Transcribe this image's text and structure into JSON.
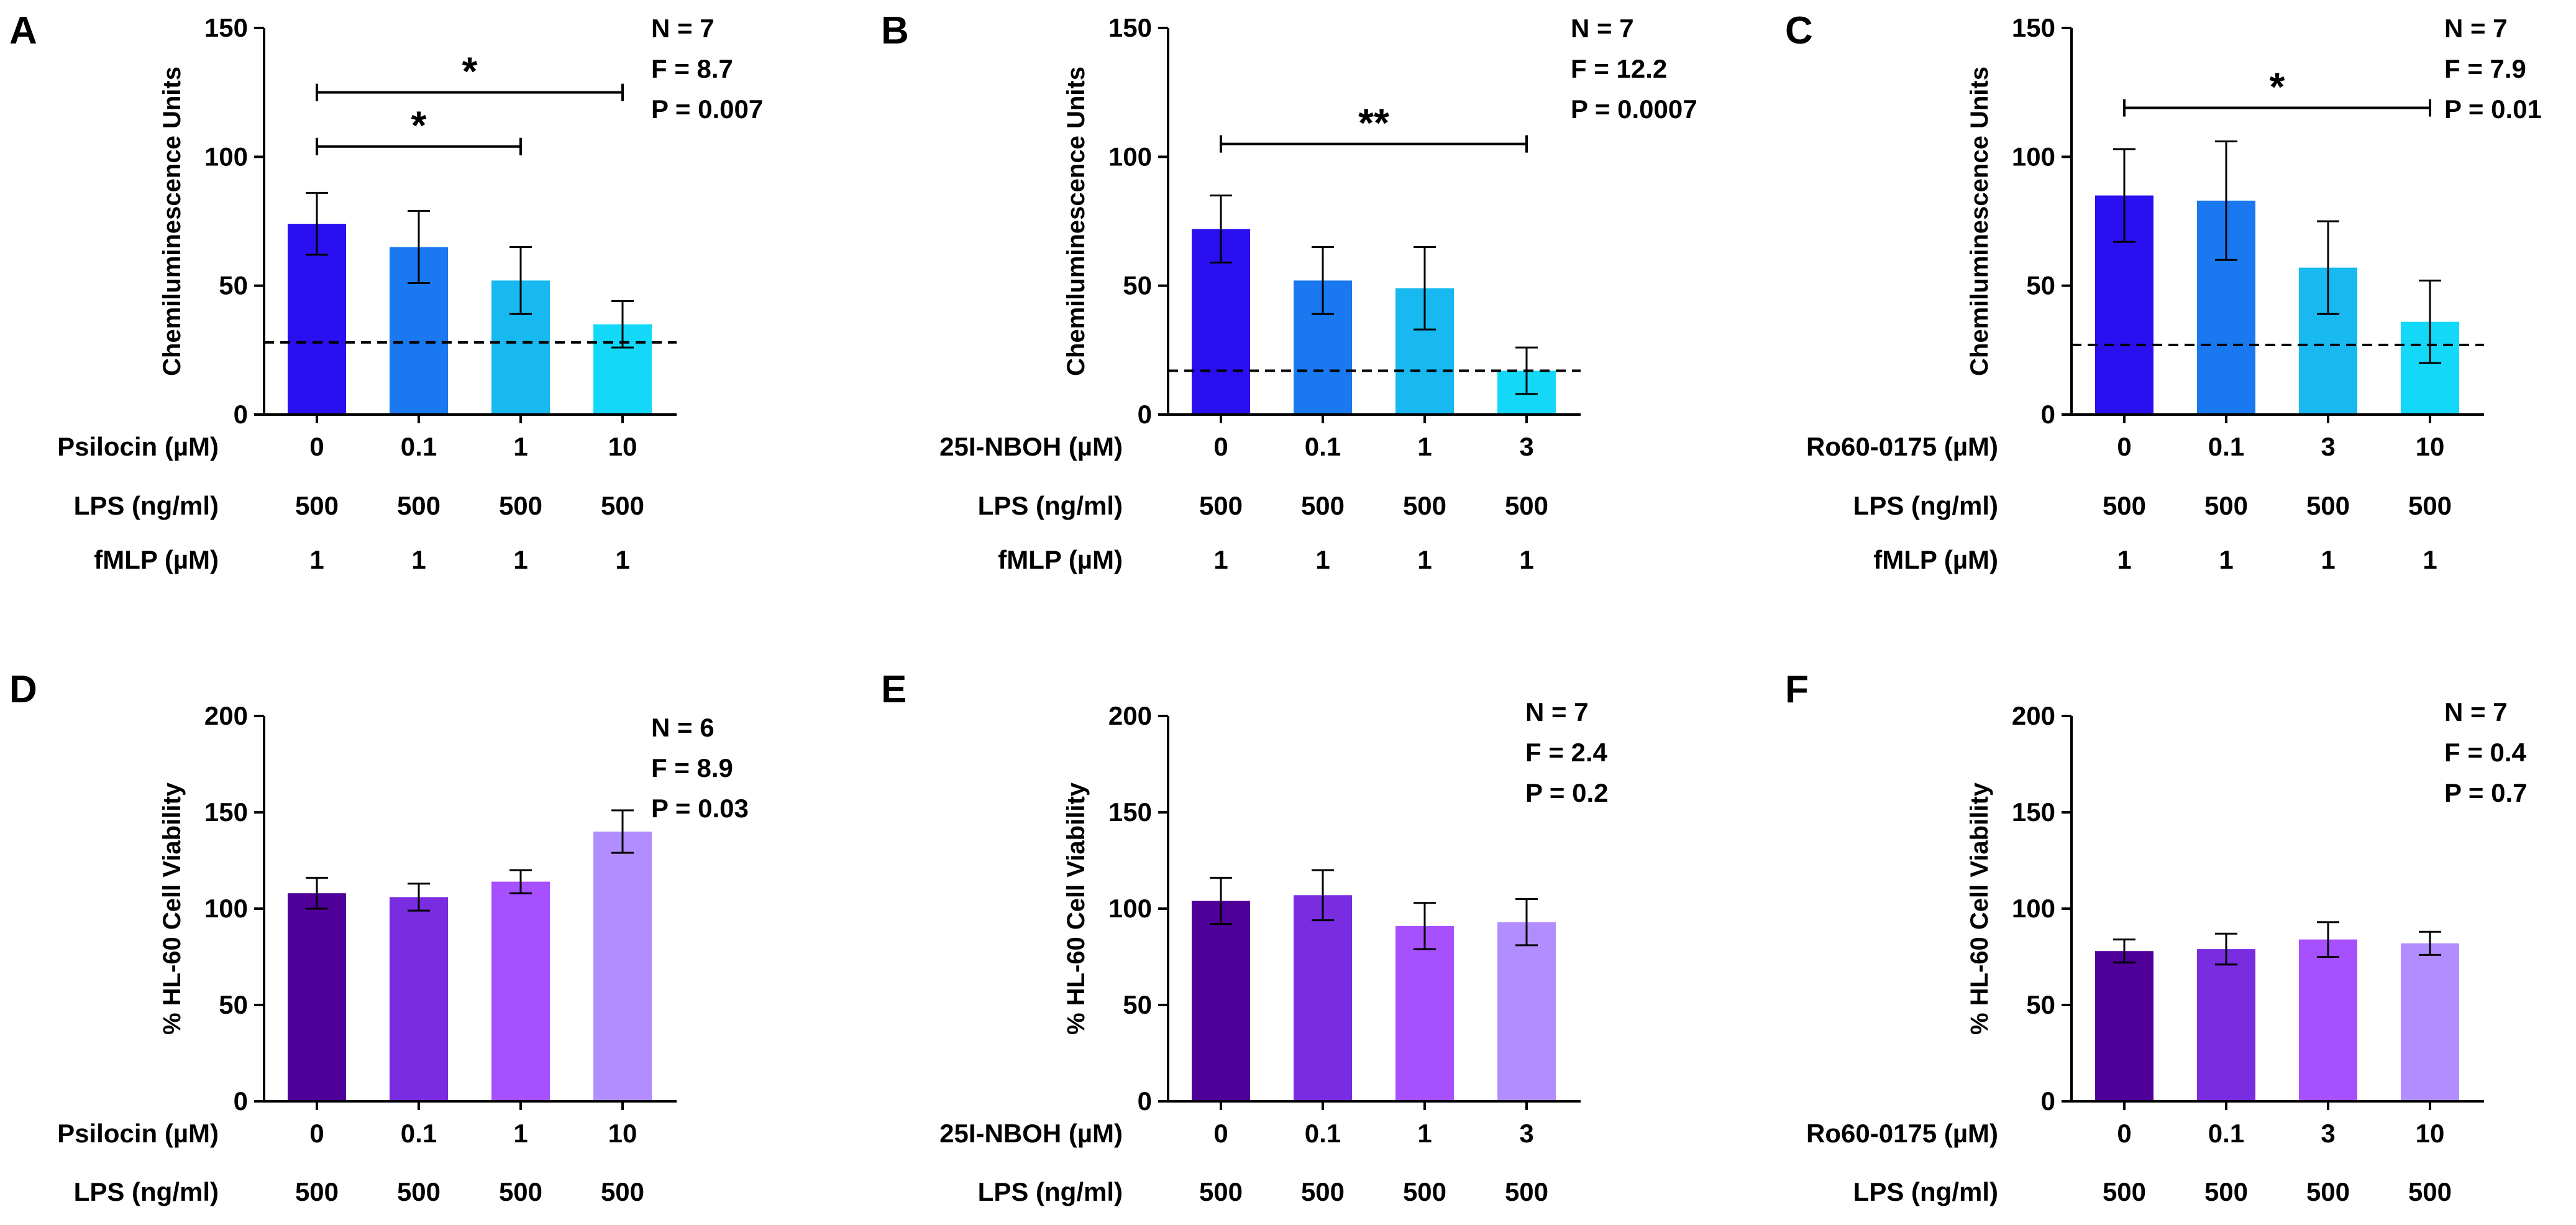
{
  "figure": {
    "theme": "scientific bar charts with error bars"
  },
  "chart_data": [
    {
      "panel": "A",
      "type": "bar",
      "ylabel": "Chemiluminescence Units",
      "ylim": [
        0,
        150
      ],
      "yticks": [
        0,
        50,
        100,
        150
      ],
      "rows": [
        {
          "label": "Psilocin (µM)",
          "values": [
            "0",
            "0.1",
            "1",
            "10"
          ]
        },
        {
          "label": "LPS (ng/ml)",
          "values": [
            "500",
            "500",
            "500",
            "500"
          ]
        },
        {
          "label": "fMLP (µM)",
          "values": [
            "1",
            "1",
            "1",
            "1"
          ]
        }
      ],
      "values": [
        74,
        65,
        52,
        35
      ],
      "errors": [
        12,
        14,
        13,
        9
      ],
      "colors": [
        "#2a10f0",
        "#1a78f0",
        "#18b8f0",
        "#14d8f8"
      ],
      "baseline": 28,
      "stats": [
        "N = 7",
        "F = 8.7",
        "P = 0.007"
      ],
      "significance": [
        {
          "from": 0,
          "to": 3,
          "y": 125,
          "label": "*"
        },
        {
          "from": 0,
          "to": 2,
          "y": 104,
          "label": "*"
        }
      ]
    },
    {
      "panel": "B",
      "type": "bar",
      "ylabel": "Chemiluminescence Units",
      "ylim": [
        0,
        150
      ],
      "yticks": [
        0,
        50,
        100,
        150
      ],
      "rows": [
        {
          "label": "25I-NBOH (µM)",
          "values": [
            "0",
            "0.1",
            "1",
            "3"
          ]
        },
        {
          "label": "LPS (ng/ml)",
          "values": [
            "500",
            "500",
            "500",
            "500"
          ]
        },
        {
          "label": "fMLP (µM)",
          "values": [
            "1",
            "1",
            "1",
            "1"
          ]
        }
      ],
      "values": [
        72,
        52,
        49,
        17
      ],
      "errors": [
        13,
        13,
        16,
        9
      ],
      "colors": [
        "#2a10f0",
        "#1a78f0",
        "#18b8f0",
        "#14d8f8"
      ],
      "baseline": 17,
      "stats": [
        "N = 7",
        "F = 12.2",
        "P = 0.0007"
      ],
      "significance": [
        {
          "from": 0,
          "to": 3,
          "y": 105,
          "label": "**"
        }
      ]
    },
    {
      "panel": "C",
      "type": "bar",
      "ylabel": "Chemiluminescence Units",
      "ylim": [
        0,
        150
      ],
      "yticks": [
        0,
        50,
        100,
        150
      ],
      "rows": [
        {
          "label": "Ro60-0175 (µM)",
          "values": [
            "0",
            "0.1",
            "3",
            "10"
          ]
        },
        {
          "label": "LPS (ng/ml)",
          "values": [
            "500",
            "500",
            "500",
            "500"
          ]
        },
        {
          "label": "fMLP (µM)",
          "values": [
            "1",
            "1",
            "1",
            "1"
          ]
        }
      ],
      "values": [
        85,
        83,
        57,
        36
      ],
      "errors": [
        18,
        23,
        18,
        16
      ],
      "colors": [
        "#2a10f0",
        "#1a78f0",
        "#18b8f0",
        "#14d8f8"
      ],
      "baseline": 27,
      "stats": [
        "N = 7",
        "F = 7.9",
        "P = 0.01"
      ],
      "significance": [
        {
          "from": 0,
          "to": 3,
          "y": 119,
          "label": "*"
        }
      ]
    },
    {
      "panel": "D",
      "type": "bar",
      "ylabel": "% HL-60 Cell Viability",
      "ylim": [
        0,
        200
      ],
      "yticks": [
        0,
        50,
        100,
        150,
        200
      ],
      "rows": [
        {
          "label": "Psilocin (µM)",
          "values": [
            "0",
            "0.1",
            "1",
            "10"
          ]
        },
        {
          "label": "LPS (ng/ml)",
          "values": [
            "500",
            "500",
            "500",
            "500"
          ]
        }
      ],
      "values": [
        108,
        106,
        114,
        140
      ],
      "errors": [
        8,
        7,
        6,
        11
      ],
      "colors": [
        "#4f0099",
        "#7a2ce0",
        "#a650ff",
        "#b28dff"
      ],
      "stats": [
        "N = 6",
        "F = 8.9",
        "P = 0.03"
      ],
      "significance": []
    },
    {
      "panel": "E",
      "type": "bar",
      "ylabel": "% HL-60 Cell Viability",
      "ylim": [
        0,
        200
      ],
      "yticks": [
        0,
        50,
        100,
        150,
        200
      ],
      "rows": [
        {
          "label": "25I-NBOH (µM)",
          "values": [
            "0",
            "0.1",
            "1",
            "3"
          ]
        },
        {
          "label": "LPS (ng/ml)",
          "values": [
            "500",
            "500",
            "500",
            "500"
          ]
        }
      ],
      "values": [
        104,
        107,
        91,
        93
      ],
      "errors": [
        12,
        13,
        12,
        12
      ],
      "colors": [
        "#4f0099",
        "#7a2ce0",
        "#a650ff",
        "#b28dff"
      ],
      "stats": [
        "N = 7",
        "F = 2.4",
        "P = 0.2"
      ],
      "significance": []
    },
    {
      "panel": "F",
      "type": "bar",
      "ylabel": "% HL-60 Cell Viability",
      "ylim": [
        0,
        200
      ],
      "yticks": [
        0,
        50,
        100,
        150,
        200
      ],
      "rows": [
        {
          "label": "Ro60-0175 (µM)",
          "values": [
            "0",
            "0.1",
            "3",
            "10"
          ]
        },
        {
          "label": "LPS (ng/ml)",
          "values": [
            "500",
            "500",
            "500",
            "500"
          ]
        }
      ],
      "values": [
        78,
        79,
        84,
        82
      ],
      "errors": [
        6,
        8,
        9,
        6
      ],
      "colors": [
        "#4f0099",
        "#7a2ce0",
        "#a650ff",
        "#b28dff"
      ],
      "stats": [
        "N = 7",
        "F = 0.4",
        "P = 0.7"
      ],
      "significance": []
    }
  ]
}
